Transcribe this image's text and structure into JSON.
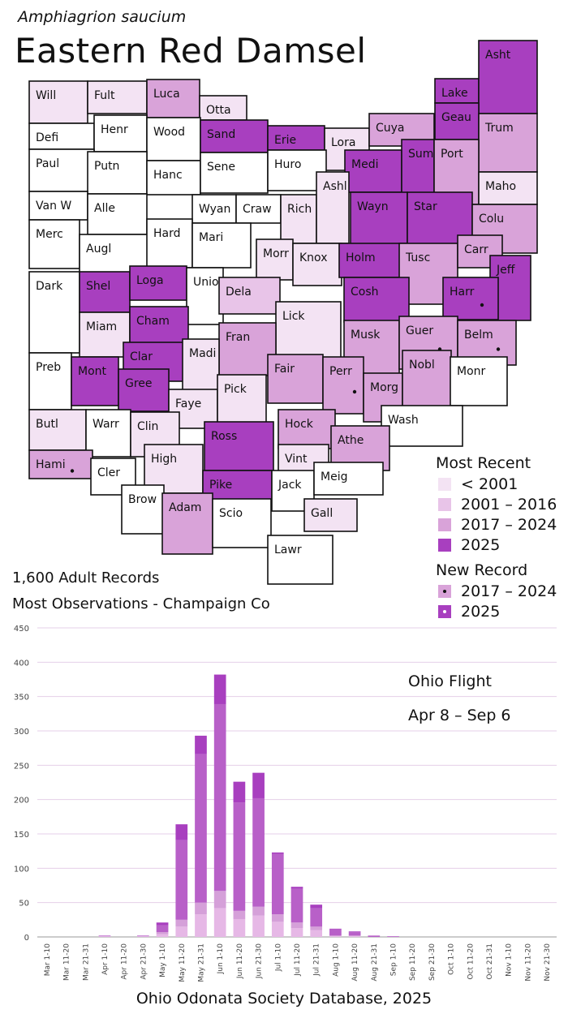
{
  "header": {
    "scientific_name": "Amphiagrion saucium",
    "common_name": "Eastern Red Damsel"
  },
  "colors": {
    "pre_2001": "#f3e3f3",
    "y2001_2016": "#e8c4e8",
    "y2017_2024": "#d9a3d9",
    "y2025": "#a83fbf",
    "none": "#ffffff",
    "bar_light": "#e6b8e6",
    "bar_mid": "#d5a0d9",
    "bar_dark": "#b860c8",
    "bar_top": "#a83fbf"
  },
  "legend": {
    "most_recent_title": "Most Recent",
    "most_recent": [
      {
        "label": "< 2001",
        "color": "#f3e3f3"
      },
      {
        "label": "2001 – 2016",
        "color": "#e8c4e8"
      },
      {
        "label": "2017 – 2024",
        "color": "#d9a3d9"
      },
      {
        "label": "2025",
        "color": "#a83fbf"
      }
    ],
    "new_record_title": "New Record",
    "new_record": [
      {
        "label": "2017 – 2024",
        "color": "#d9a3d9",
        "dot": "black"
      },
      {
        "label": "2025",
        "color": "#a83fbf",
        "dot": "white"
      }
    ]
  },
  "stats": {
    "records": "1,600 Adult Records",
    "most_obs": "Most Observations - Champaign Co"
  },
  "counties": [
    {
      "name": "Will",
      "cat": "pre_2001"
    },
    {
      "name": "Fult",
      "cat": "pre_2001"
    },
    {
      "name": "Luca",
      "cat": "y2017_2024"
    },
    {
      "name": "Otta",
      "cat": "pre_2001"
    },
    {
      "name": "Lake",
      "cat": "y2025"
    },
    {
      "name": "Asht",
      "cat": "y2025"
    },
    {
      "name": "Defi",
      "cat": "none"
    },
    {
      "name": "Henr",
      "cat": "none"
    },
    {
      "name": "Wood",
      "cat": "none"
    },
    {
      "name": "Sand",
      "cat": "y2025"
    },
    {
      "name": "Erie",
      "cat": "y2025"
    },
    {
      "name": "Lora",
      "cat": "pre_2001"
    },
    {
      "name": "Cuya",
      "cat": "y2017_2024"
    },
    {
      "name": "Geau",
      "cat": "y2025"
    },
    {
      "name": "Trum",
      "cat": "y2017_2024"
    },
    {
      "name": "Paul",
      "cat": "none"
    },
    {
      "name": "Putn",
      "cat": "none"
    },
    {
      "name": "Hanc",
      "cat": "none"
    },
    {
      "name": "Sene",
      "cat": "none"
    },
    {
      "name": "Huro",
      "cat": "none"
    },
    {
      "name": "Medi",
      "cat": "y2025"
    },
    {
      "name": "Summ",
      "cat": "y2025"
    },
    {
      "name": "Port",
      "cat": "y2017_2024"
    },
    {
      "name": "Maho",
      "cat": "pre_2001"
    },
    {
      "name": "Van W",
      "cat": "none"
    },
    {
      "name": "Alle",
      "cat": "none"
    },
    {
      "name": "Wyan",
      "cat": "none"
    },
    {
      "name": "Craw",
      "cat": "none"
    },
    {
      "name": "Rich",
      "cat": "pre_2001"
    },
    {
      "name": "Ashl",
      "cat": "pre_2001"
    },
    {
      "name": "Wayn",
      "cat": "y2025"
    },
    {
      "name": "Star",
      "cat": "y2025"
    },
    {
      "name": "Colu",
      "cat": "y2017_2024"
    },
    {
      "name": "Merc",
      "cat": "none"
    },
    {
      "name": "Augl",
      "cat": "none"
    },
    {
      "name": "Hard",
      "cat": "none"
    },
    {
      "name": "Mari",
      "cat": "none"
    },
    {
      "name": "Morr",
      "cat": "pre_2001"
    },
    {
      "name": "Knox",
      "cat": "pre_2001"
    },
    {
      "name": "Holm",
      "cat": "y2025"
    },
    {
      "name": "Tusc",
      "cat": "y2017_2024"
    },
    {
      "name": "Carr",
      "cat": "y2017_2024"
    },
    {
      "name": "Jeff",
      "cat": "y2025"
    },
    {
      "name": "Dark",
      "cat": "none"
    },
    {
      "name": "Shel",
      "cat": "y2025"
    },
    {
      "name": "Loga",
      "cat": "y2025"
    },
    {
      "name": "Unio",
      "cat": "none"
    },
    {
      "name": "Dela",
      "cat": "y2001_2016"
    },
    {
      "name": "Lick",
      "cat": "pre_2001"
    },
    {
      "name": "Cosh",
      "cat": "y2025"
    },
    {
      "name": "Harr",
      "cat": "y2025"
    },
    {
      "name": "Miam",
      "cat": "pre_2001"
    },
    {
      "name": "Cham",
      "cat": "y2025"
    },
    {
      "name": "Fran",
      "cat": "y2017_2024"
    },
    {
      "name": "Musk",
      "cat": "y2017_2024"
    },
    {
      "name": "Guer",
      "cat": "y2017_2024"
    },
    {
      "name": "Belm",
      "cat": "y2017_2024"
    },
    {
      "name": "Clar",
      "cat": "y2025"
    },
    {
      "name": "Preb",
      "cat": "none"
    },
    {
      "name": "Mont",
      "cat": "y2025"
    },
    {
      "name": "Gree",
      "cat": "y2025"
    },
    {
      "name": "Madi",
      "cat": "pre_2001"
    },
    {
      "name": "Fair",
      "cat": "y2017_2024"
    },
    {
      "name": "Perr",
      "cat": "y2017_2024"
    },
    {
      "name": "Morg",
      "cat": "y2017_2024"
    },
    {
      "name": "Nobl",
      "cat": "y2017_2024"
    },
    {
      "name": "Monr",
      "cat": "none"
    },
    {
      "name": "Faye",
      "cat": "pre_2001"
    },
    {
      "name": "Pick",
      "cat": "pre_2001"
    },
    {
      "name": "Butl",
      "cat": "pre_2001"
    },
    {
      "name": "Warr",
      "cat": "none"
    },
    {
      "name": "Clin",
      "cat": "pre_2001"
    },
    {
      "name": "Hock",
      "cat": "y2017_2024"
    },
    {
      "name": "Wash",
      "cat": "none"
    },
    {
      "name": "Ross",
      "cat": "y2025"
    },
    {
      "name": "Athe",
      "cat": "y2017_2024"
    },
    {
      "name": "Hami",
      "cat": "y2017_2024"
    },
    {
      "name": "High",
      "cat": "pre_2001"
    },
    {
      "name": "Vint",
      "cat": "pre_2001"
    },
    {
      "name": "Cler",
      "cat": "none"
    },
    {
      "name": "Pike",
      "cat": "y2025"
    },
    {
      "name": "Jack",
      "cat": "none"
    },
    {
      "name": "Meig",
      "cat": "none"
    },
    {
      "name": "Brow",
      "cat": "none"
    },
    {
      "name": "Adam",
      "cat": "y2017_2024"
    },
    {
      "name": "Scio",
      "cat": "none"
    },
    {
      "name": "Gall",
      "cat": "pre_2001"
    },
    {
      "name": "Lawr",
      "cat": "none"
    }
  ],
  "chart_data": {
    "type": "bar",
    "stacked": true,
    "categories": [
      "Mar 1-10",
      "Mar 11-20",
      "Mar 21-31",
      "Apr 1-10",
      "Apr 11-20",
      "Apr 21-30",
      "May 1-10",
      "May 11-20",
      "May 21-31",
      "Jun 1-10",
      "Jun 11-20",
      "Jun 21-30",
      "Jul 1-10",
      "Jul 11-20",
      "Jul 21-31",
      "Aug 1-10",
      "Aug 11-20",
      "Aug 21-31",
      "Sep 1-10",
      "Sep 11-20",
      "Sep 21-30",
      "Oct 1-10",
      "Oct 11-20",
      "Oct 21-31",
      "Nov 1-10",
      "Nov 11-20",
      "Nov 21-30"
    ],
    "series": [
      {
        "values": [
          0,
          0,
          0,
          1,
          0,
          1,
          4,
          15,
          33,
          42,
          26,
          31,
          22,
          13,
          10,
          1,
          1,
          0,
          0,
          0,
          0,
          0,
          0,
          0,
          0,
          0,
          0
        ]
      },
      {
        "values": [
          0,
          0,
          0,
          0,
          0,
          0,
          3,
          10,
          17,
          25,
          12,
          13,
          11,
          8,
          5,
          1,
          1,
          0,
          0,
          0,
          0,
          0,
          0,
          0,
          0,
          0,
          0
        ]
      },
      {
        "values": [
          0,
          0,
          0,
          1,
          0,
          1,
          10,
          116,
          216,
          272,
          158,
          158,
          88,
          49,
          27,
          9,
          5,
          2,
          1,
          0,
          0,
          0,
          0,
          0,
          0,
          0,
          0
        ]
      },
      {
        "values": [
          0,
          0,
          0,
          0,
          0,
          0,
          4,
          23,
          27,
          43,
          30,
          37,
          2,
          3,
          5,
          1,
          1,
          0,
          0,
          0,
          0,
          0,
          0,
          0,
          0,
          0,
          0
        ]
      }
    ],
    "totals": [
      0,
      0,
      0,
      2,
      0,
      2,
      21,
      164,
      293,
      382,
      226,
      239,
      123,
      73,
      47,
      12,
      8,
      2,
      1,
      0,
      0,
      0,
      0,
      0,
      0,
      0,
      0
    ],
    "ylim": [
      0,
      450
    ],
    "yticks": [
      0,
      50,
      100,
      150,
      200,
      250,
      300,
      350,
      400,
      450
    ],
    "grid": true,
    "annotation_title": "Ohio Flight",
    "annotation_range": "Apr 8 – Sep 6"
  },
  "footer": "Ohio Odonata Society Database, 2025"
}
